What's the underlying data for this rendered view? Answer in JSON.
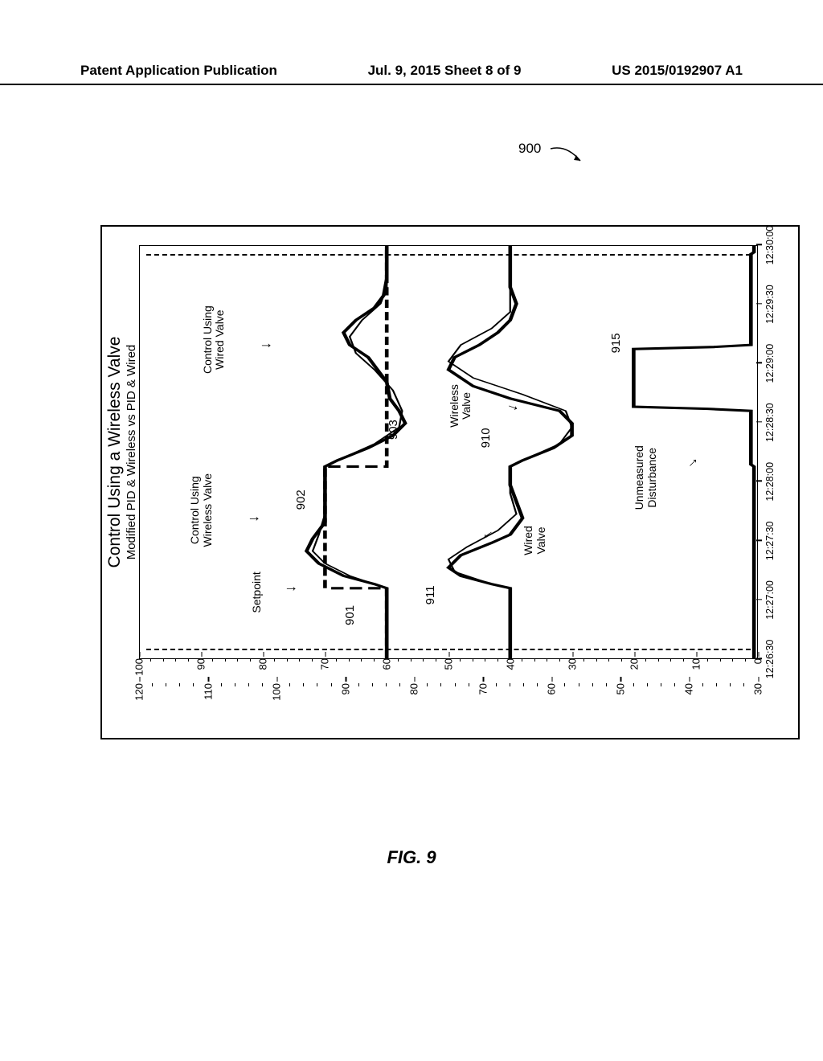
{
  "header": {
    "left": "Patent Application Publication",
    "center": "Jul. 9, 2015  Sheet 8 of 9",
    "right": "US 2015/0192907 A1"
  },
  "figure_label": "FIG. 9",
  "ref_900": "900",
  "chart": {
    "title_main": "Control Using a Wireless Valve",
    "title_sub": "Modified PID & Wireless vs PID & Wired",
    "y_outer": {
      "min": 30,
      "max": 120,
      "step": 10,
      "minor_count": 4
    },
    "y_inner": {
      "min": 0,
      "max": 100,
      "step": 10,
      "minor_count": 4
    },
    "x_labels": [
      "12:26:30",
      "12:27:00",
      "12:27:30",
      "12:28:00",
      "12:28:30",
      "12:29:00",
      "12:29:30",
      "12:30:00"
    ],
    "annotations": {
      "setpoint": "Setpoint",
      "wireless_valve_ctrl": "Control Using\nWireless Valve",
      "wired_valve_ctrl": "Control Using\nWired Valve",
      "wired_valve": "Wired\nValve",
      "wireless_valve": "Wireless\nValve",
      "disturbance": "Unmeasured\nDisturbance"
    },
    "refs": {
      "r901": "901",
      "r902": "902",
      "r903": "903",
      "r910": "910",
      "r911": "911",
      "r915": "915"
    },
    "series": {
      "setpoint": {
        "style": "dashed",
        "width": 2.5,
        "data": [
          [
            0,
            60
          ],
          [
            17,
            60
          ],
          [
            17,
            70
          ],
          [
            46.5,
            70
          ],
          [
            46.5,
            60
          ],
          [
            100,
            60
          ]
        ]
      },
      "ctrl_wireless": {
        "style": "solid",
        "width": 2.5,
        "data": [
          [
            0,
            60
          ],
          [
            17,
            60
          ],
          [
            18,
            62
          ],
          [
            20,
            67
          ],
          [
            23,
            71
          ],
          [
            26,
            73
          ],
          [
            29,
            72
          ],
          [
            33,
            70
          ],
          [
            37,
            70
          ],
          [
            40,
            70
          ],
          [
            44,
            70
          ],
          [
            46.5,
            70
          ],
          [
            48,
            68
          ],
          [
            51,
            63
          ],
          [
            54,
            59
          ],
          [
            57,
            57
          ],
          [
            60,
            58
          ],
          [
            63,
            59.5
          ],
          [
            67,
            60
          ],
          [
            73,
            63
          ],
          [
            76,
            66
          ],
          [
            79,
            67
          ],
          [
            82,
            65
          ],
          [
            85,
            62
          ],
          [
            88,
            60.5
          ],
          [
            92,
            60
          ],
          [
            100,
            60
          ]
        ]
      },
      "ctrl_wired": {
        "style": "solid",
        "width": 1.2,
        "data": [
          [
            0,
            60
          ],
          [
            17,
            60
          ],
          [
            18,
            62
          ],
          [
            20,
            66
          ],
          [
            23,
            70
          ],
          [
            26,
            72
          ],
          [
            30,
            71
          ],
          [
            35,
            70
          ],
          [
            40,
            70
          ],
          [
            46.5,
            70
          ],
          [
            48,
            68
          ],
          [
            52,
            62
          ],
          [
            56,
            58
          ],
          [
            60,
            57.5
          ],
          [
            65,
            59
          ],
          [
            70,
            62
          ],
          [
            74,
            65
          ],
          [
            78,
            66
          ],
          [
            82,
            64
          ],
          [
            86,
            61
          ],
          [
            90,
            60
          ],
          [
            100,
            60
          ]
        ]
      },
      "valve_wired": {
        "style": "solid",
        "width": 2.5,
        "data": [
          [
            0,
            40
          ],
          [
            17,
            40
          ],
          [
            18,
            43
          ],
          [
            20,
            48
          ],
          [
            22,
            50
          ],
          [
            25,
            48
          ],
          [
            28,
            43
          ],
          [
            30,
            40
          ],
          [
            34,
            38
          ],
          [
            38,
            39
          ],
          [
            42,
            40
          ],
          [
            46.5,
            40
          ],
          [
            48,
            38
          ],
          [
            51,
            33
          ],
          [
            54,
            30
          ],
          [
            57,
            30
          ],
          [
            60,
            32
          ],
          [
            63,
            40
          ],
          [
            66,
            46
          ],
          [
            70,
            50
          ],
          [
            73,
            49
          ],
          [
            76,
            45
          ],
          [
            79,
            42
          ],
          [
            82,
            40
          ],
          [
            86,
            39
          ],
          [
            90,
            40
          ],
          [
            100,
            40
          ]
        ]
      },
      "valve_wireless": {
        "style": "solid",
        "width": 1.2,
        "data": [
          [
            0,
            40
          ],
          [
            17,
            40
          ],
          [
            18,
            43
          ],
          [
            21,
            49
          ],
          [
            24,
            50
          ],
          [
            27,
            47
          ],
          [
            31,
            42
          ],
          [
            35,
            39
          ],
          [
            40,
            40
          ],
          [
            46.5,
            40
          ],
          [
            48,
            38
          ],
          [
            52,
            32
          ],
          [
            56,
            30
          ],
          [
            60,
            31
          ],
          [
            64,
            38
          ],
          [
            68,
            46
          ],
          [
            72,
            50
          ],
          [
            76,
            48
          ],
          [
            80,
            43
          ],
          [
            84,
            40
          ],
          [
            90,
            40
          ],
          [
            100,
            40
          ]
        ]
      },
      "disturbance": {
        "style": "solid",
        "width": 2.5,
        "data": [
          [
            0,
            0.5
          ],
          [
            46,
            0.5
          ],
          [
            46.5,
            0.5
          ],
          [
            47,
            1
          ],
          [
            60,
            1
          ],
          [
            60.5,
            8
          ],
          [
            61,
            20
          ],
          [
            75,
            20
          ],
          [
            75.5,
            7
          ],
          [
            76,
            1
          ],
          [
            98,
            1
          ],
          [
            98.5,
            0.5
          ],
          [
            100,
            0.5
          ]
        ]
      }
    }
  }
}
